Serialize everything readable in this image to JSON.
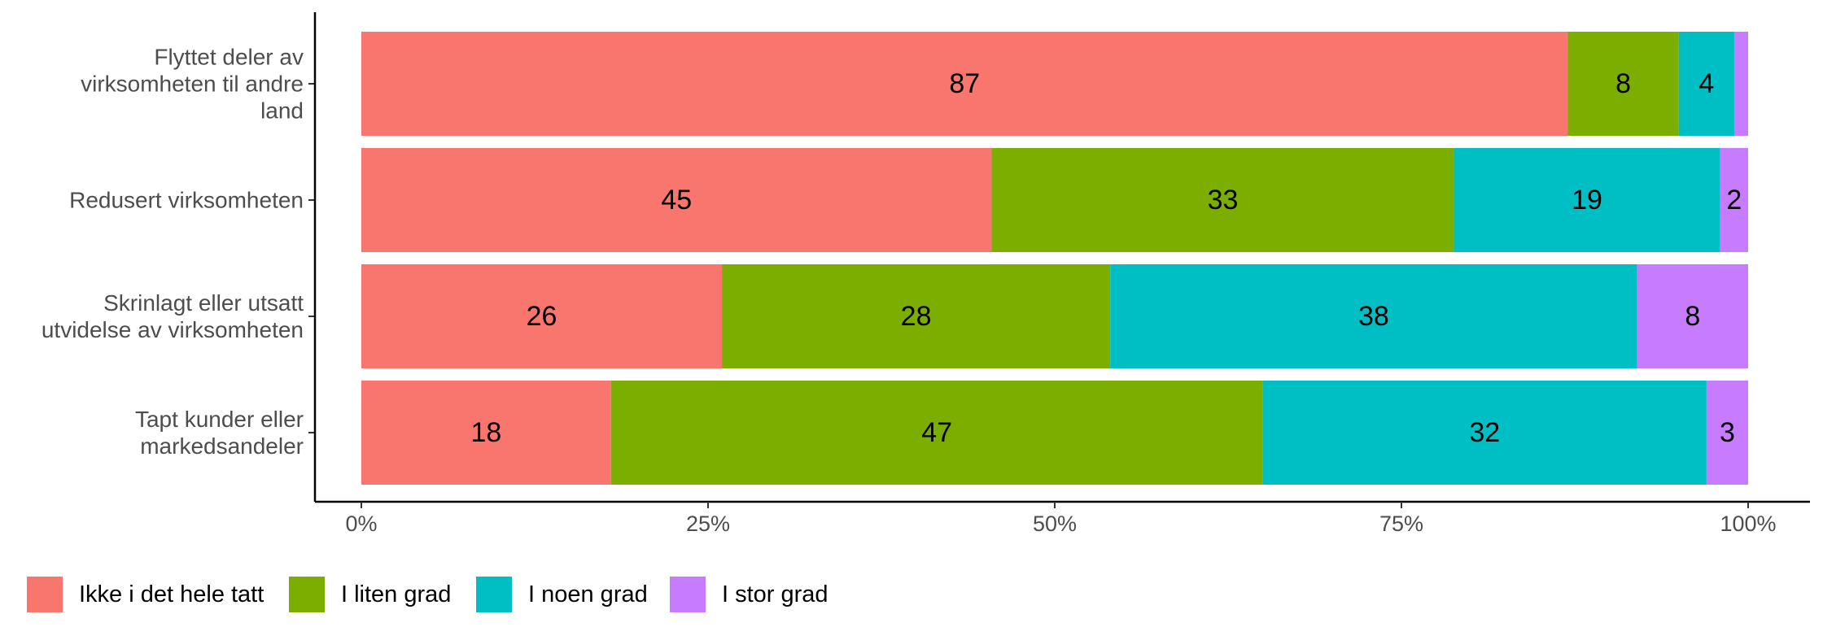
{
  "chart_data": {
    "type": "bar",
    "orientation": "horizontal",
    "stacked": true,
    "normalized": true,
    "categories": [
      [
        "Flyttet deler av",
        "virksomheten til andre",
        "land"
      ],
      [
        "Redusert virksomheten"
      ],
      [
        "Skrinlagt eller utsatt",
        "utvidelse av virksomheten"
      ],
      [
        "Tapt kunder eller",
        "markedsandeler"
      ]
    ],
    "series": [
      {
        "name": "Ikke i det hele tatt",
        "color": "#F8766D",
        "values": [
          87,
          45,
          26,
          18
        ],
        "labels": [
          "87",
          "45",
          "26",
          "18"
        ]
      },
      {
        "name": "I liten grad",
        "color": "#7CAE00",
        "values": [
          8,
          33,
          28,
          47
        ],
        "labels": [
          "8",
          "33",
          "28",
          "47"
        ]
      },
      {
        "name": "I noen grad",
        "color": "#00BFC4",
        "values": [
          4,
          19,
          38,
          32
        ],
        "labels": [
          "4",
          "19",
          "38",
          "32"
        ]
      },
      {
        "name": "I stor grad",
        "color": "#C77CFF",
        "values": [
          1,
          2,
          8,
          3
        ],
        "labels": [
          "",
          "2",
          "8",
          "3"
        ]
      }
    ],
    "x_ticks": [
      "0%",
      "25%",
      "50%",
      "75%",
      "100%"
    ],
    "xlim": [
      0,
      100
    ],
    "title": "",
    "xlabel": "",
    "ylabel": "",
    "grid": false,
    "legend_position": "bottom-left"
  }
}
